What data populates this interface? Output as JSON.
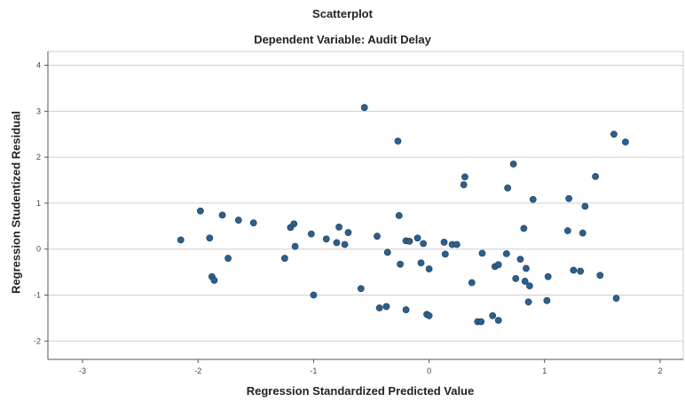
{
  "chart_data": {
    "type": "scatter",
    "title": "Scatterplot",
    "subtitle": "Dependent Variable: Audit Delay",
    "xlabel": "Regression Standardized Predicted Value",
    "ylabel": "Regression Studentized Residual",
    "xlim": [
      -3.3,
      2.2
    ],
    "ylim": [
      -2.4,
      4.3
    ],
    "xticks": [
      -3,
      -2,
      -1,
      0,
      1,
      2
    ],
    "yticks": [
      -2,
      -1,
      0,
      1,
      2,
      3,
      4
    ],
    "grid": "horizontal",
    "point_color": "#2e5f8a",
    "points": [
      [
        -2.15,
        0.2
      ],
      [
        -1.98,
        0.83
      ],
      [
        -1.9,
        0.24
      ],
      [
        -1.88,
        -0.6
      ],
      [
        -1.86,
        -0.68
      ],
      [
        -1.79,
        0.74
      ],
      [
        -1.74,
        -0.2
      ],
      [
        -1.65,
        0.63
      ],
      [
        -1.52,
        0.57
      ],
      [
        -1.25,
        -0.2
      ],
      [
        -1.2,
        0.47
      ],
      [
        -1.17,
        0.55
      ],
      [
        -1.16,
        0.06
      ],
      [
        -1.02,
        0.33
      ],
      [
        -1.0,
        -1.0
      ],
      [
        -0.89,
        0.22
      ],
      [
        -0.8,
        0.14
      ],
      [
        -0.78,
        0.48
      ],
      [
        -0.73,
        0.1
      ],
      [
        -0.7,
        0.36
      ],
      [
        -0.59,
        -0.86
      ],
      [
        -0.56,
        3.08
      ],
      [
        -0.45,
        0.28
      ],
      [
        -0.43,
        -1.28
      ],
      [
        -0.37,
        -1.25
      ],
      [
        -0.36,
        -0.07
      ],
      [
        -0.27,
        2.35
      ],
      [
        -0.26,
        0.73
      ],
      [
        -0.25,
        -0.33
      ],
      [
        -0.2,
        -1.32
      ],
      [
        -0.2,
        0.18
      ],
      [
        -0.17,
        0.17
      ],
      [
        -0.1,
        0.24
      ],
      [
        -0.07,
        -0.3
      ],
      [
        -0.05,
        0.12
      ],
      [
        -0.02,
        -1.42
      ],
      [
        0.0,
        -1.45
      ],
      [
        0.0,
        -0.43
      ],
      [
        0.13,
        0.15
      ],
      [
        0.14,
        -0.11
      ],
      [
        0.2,
        0.1
      ],
      [
        0.24,
        0.1
      ],
      [
        0.3,
        1.4
      ],
      [
        0.31,
        1.57
      ],
      [
        0.37,
        -0.73
      ],
      [
        0.42,
        -1.58
      ],
      [
        0.45,
        -1.58
      ],
      [
        0.46,
        -0.09
      ],
      [
        0.55,
        -1.45
      ],
      [
        0.57,
        -0.38
      ],
      [
        0.6,
        -0.34
      ],
      [
        0.6,
        -1.55
      ],
      [
        0.67,
        -0.1
      ],
      [
        0.68,
        1.33
      ],
      [
        0.73,
        1.85
      ],
      [
        0.75,
        -0.64
      ],
      [
        0.79,
        -0.22
      ],
      [
        0.82,
        0.45
      ],
      [
        0.83,
        -0.7
      ],
      [
        0.84,
        -0.42
      ],
      [
        0.86,
        -1.15
      ],
      [
        0.87,
        -0.8
      ],
      [
        0.9,
        1.08
      ],
      [
        1.02,
        -1.12
      ],
      [
        1.03,
        -0.6
      ],
      [
        1.2,
        0.4
      ],
      [
        1.21,
        1.1
      ],
      [
        1.25,
        -0.46
      ],
      [
        1.31,
        -0.48
      ],
      [
        1.33,
        0.35
      ],
      [
        1.35,
        0.93
      ],
      [
        1.44,
        1.58
      ],
      [
        1.48,
        -0.57
      ],
      [
        1.6,
        2.5
      ],
      [
        1.62,
        -1.07
      ],
      [
        1.7,
        2.33
      ]
    ]
  }
}
